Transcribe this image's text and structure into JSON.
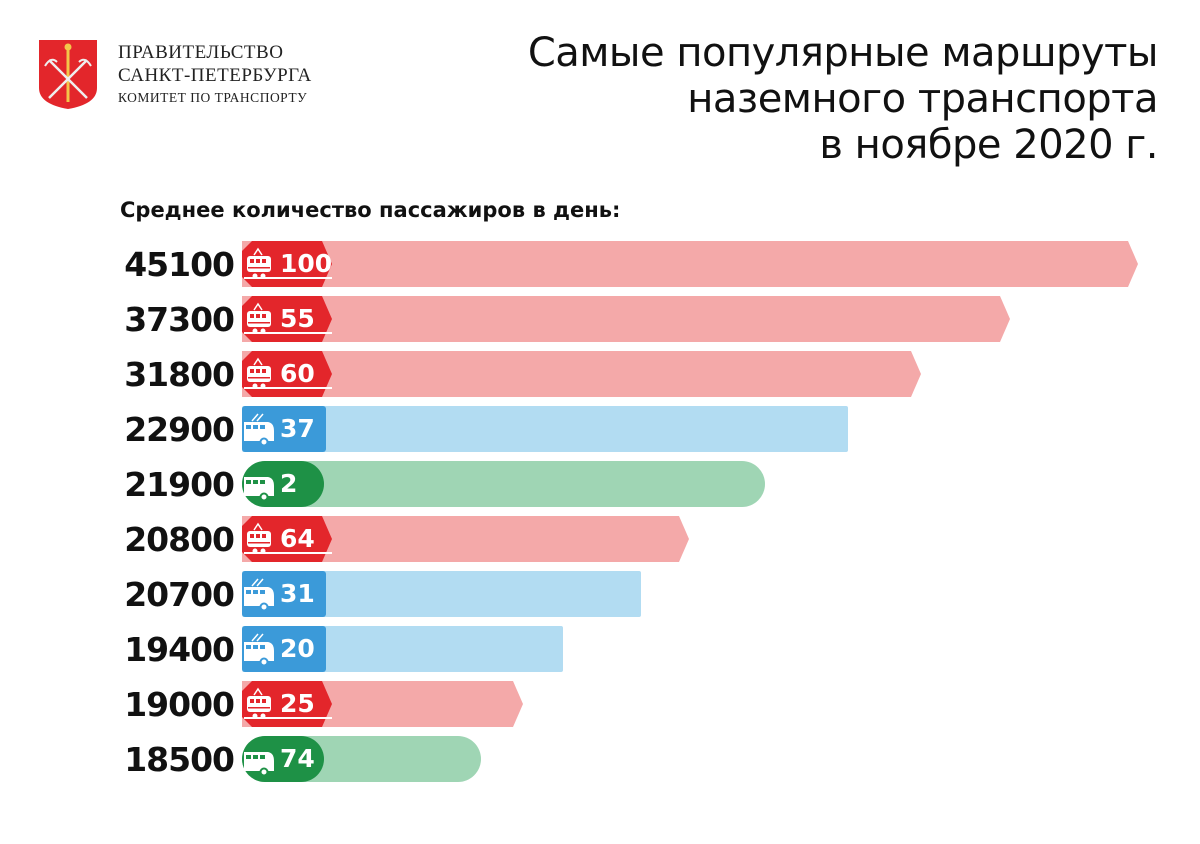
{
  "header": {
    "org_line1": "ПРАВИТЕЛЬСТВО",
    "org_line2": "САНКТ-ПЕТЕРБУРГА",
    "org_line3": "КОМИТЕТ ПО ТРАНСПОРТУ",
    "title_line1": "Самые популярные маршруты",
    "title_line2": "наземного транспорта",
    "title_line3": "в ноябре 2020 г."
  },
  "colors": {
    "tram": "#e3262b",
    "tram_bar": "#f4a9a9",
    "trolleybus": "#3b9ad9",
    "trolleybus_bar": "#b2dcf2",
    "bus": "#1e9146",
    "bus_bar": "#9fd5b4"
  },
  "chart_data": {
    "type": "bar",
    "orientation": "horizontal",
    "title": "Самые популярные маршруты наземного транспорта в ноябре 2020 г.",
    "subtitle": "Среднее количество пассажиров в день:",
    "categories": [
      "100",
      "55",
      "60",
      "37",
      "2",
      "64",
      "31",
      "20",
      "25",
      "74"
    ],
    "transport": [
      "tram",
      "tram",
      "tram",
      "trolleybus",
      "bus",
      "tram",
      "trolleybus",
      "trolleybus",
      "tram",
      "bus"
    ],
    "values": [
      45100,
      37300,
      31800,
      22900,
      21900,
      20800,
      20700,
      19400,
      19000,
      18500
    ],
    "value_labels": [
      "45100",
      "37300",
      "31800",
      "22900",
      "21900",
      "20800",
      "20700",
      "19400",
      "19000",
      "18500"
    ]
  }
}
